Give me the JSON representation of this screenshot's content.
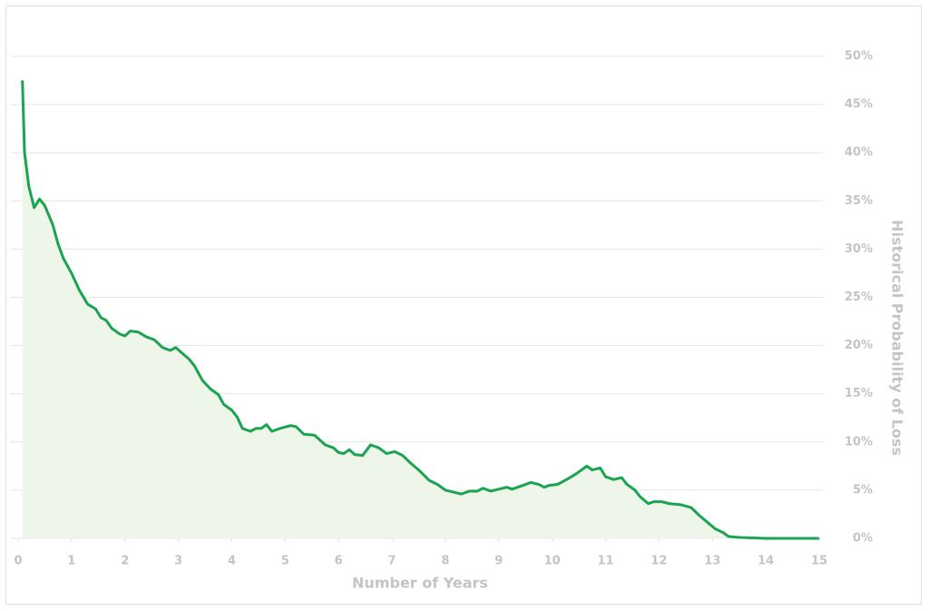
{
  "chart_data": {
    "type": "area",
    "x": [
      0.08,
      0.12,
      0.2,
      0.3,
      0.4,
      0.5,
      0.65,
      0.75,
      0.85,
      1.0,
      1.15,
      1.3,
      1.45,
      1.55,
      1.65,
      1.75,
      1.9,
      2.0,
      2.1,
      2.25,
      2.4,
      2.55,
      2.7,
      2.85,
      2.95,
      3.05,
      3.2,
      3.3,
      3.45,
      3.6,
      3.75,
      3.85,
      4.0,
      4.1,
      4.2,
      4.35,
      4.45,
      4.55,
      4.65,
      4.75,
      4.9,
      5.1,
      5.2,
      5.35,
      5.55,
      5.75,
      5.9,
      6.0,
      6.1,
      6.2,
      6.3,
      6.45,
      6.6,
      6.75,
      6.9,
      7.05,
      7.2,
      7.35,
      7.5,
      7.7,
      7.85,
      8.0,
      8.15,
      8.3,
      8.45,
      8.6,
      8.7,
      8.85,
      9.0,
      9.15,
      9.25,
      9.4,
      9.6,
      9.75,
      9.85,
      9.95,
      10.1,
      10.3,
      10.45,
      10.6,
      10.65,
      10.75,
      10.9,
      11.0,
      11.15,
      11.3,
      11.4,
      11.55,
      11.65,
      11.8,
      11.9,
      12.05,
      12.2,
      12.4,
      12.6,
      12.75,
      12.9,
      13.05,
      13.2,
      13.3,
      13.5,
      14.0,
      15.0
    ],
    "values": [
      47.5,
      40,
      36.5,
      34.3,
      35.2,
      34.5,
      32.5,
      30.5,
      29,
      27.5,
      25.7,
      24.3,
      23.8,
      22.9,
      22.6,
      21.8,
      21.2,
      21,
      21.5,
      21.4,
      20.9,
      20.6,
      19.8,
      19.5,
      19.8,
      19.3,
      18.6,
      17.9,
      16.4,
      15.5,
      14.9,
      13.9,
      13.3,
      12.6,
      11.4,
      11.1,
      11.4,
      11.4,
      11.8,
      11.1,
      11.4,
      11.7,
      11.6,
      10.8,
      10.7,
      9.7,
      9.4,
      8.9,
      8.8,
      9.2,
      8.7,
      8.6,
      9.7,
      9.4,
      8.8,
      9.0,
      8.6,
      7.8,
      7.1,
      6.0,
      5.6,
      5.0,
      4.8,
      4.6,
      4.9,
      4.9,
      5.2,
      4.9,
      5.1,
      5.3,
      5.1,
      5.4,
      5.8,
      5.6,
      5.3,
      5.5,
      5.6,
      6.2,
      6.7,
      7.3,
      7.5,
      7.1,
      7.3,
      6.4,
      6.1,
      6.3,
      5.6,
      5.0,
      4.3,
      3.6,
      3.8,
      3.8,
      3.6,
      3.5,
      3.2,
      2.4,
      1.7,
      1.0,
      0.6,
      0.2,
      0.1,
      0,
      0
    ],
    "color": "#1aa350",
    "fill_color": "#eef6ea",
    "xlabel": "Number of Years",
    "ylabel": "Historical Probability of Loss",
    "xlim": [
      0,
      15
    ],
    "xticks": [
      0,
      1,
      2,
      3,
      4,
      5,
      6,
      7,
      8,
      9,
      10,
      11,
      12,
      13,
      14,
      15
    ],
    "ylim": [
      0,
      50
    ],
    "yticks": [
      {
        "value": 0,
        "label": "0%"
      },
      {
        "value": 5,
        "label": "5%"
      },
      {
        "value": 10,
        "label": "10%"
      },
      {
        "value": 15,
        "label": "15%"
      },
      {
        "value": 20,
        "label": "20%"
      },
      {
        "value": 25,
        "label": "25%"
      },
      {
        "value": 30,
        "label": "30%"
      },
      {
        "value": 35,
        "label": "35%"
      },
      {
        "value": 40,
        "label": "40%"
      },
      {
        "value": 45,
        "label": "45%"
      },
      {
        "value": 50,
        "label": "50%"
      }
    ],
    "grid": true,
    "y_axis_side": "right"
  }
}
